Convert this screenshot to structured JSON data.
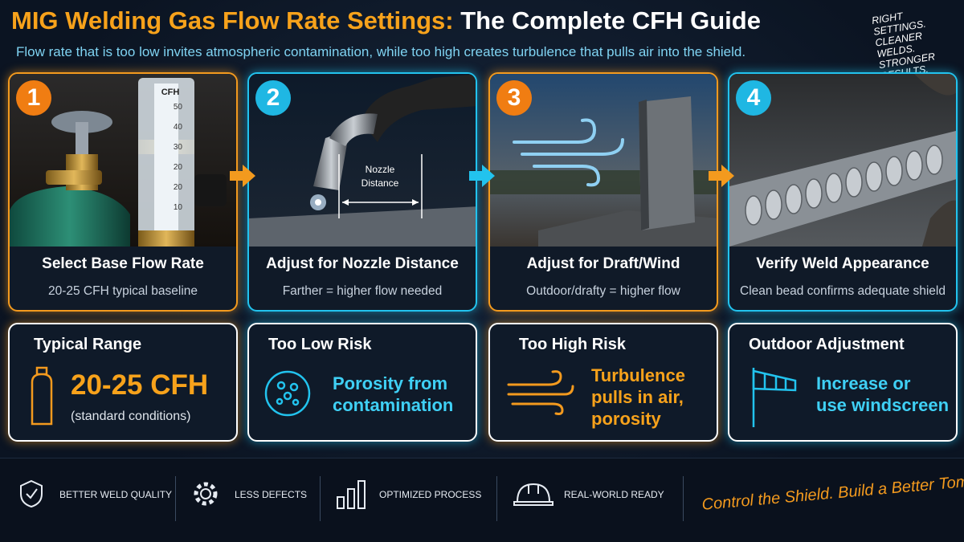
{
  "header": {
    "title_highlight": "MIG Welding Gas Flow Rate Settings:",
    "title_rest": "The Complete CFH Guide",
    "subtitle": "Flow rate that is too low invites atmospheric contamination, while too high creates turbulence that pulls air into the shield.",
    "tag": [
      "RIGHT",
      "SETTINGS.",
      "CLEANER WELDS.",
      "STRONGER",
      "RESULTS."
    ]
  },
  "steps": [
    {
      "number": "1",
      "title": "Select Base Flow Rate",
      "description": "20-25 CFH typical baseline",
      "image_labels": [
        "CFH",
        "50",
        "40",
        "30",
        "20",
        "20",
        "10"
      ]
    },
    {
      "number": "2",
      "title": "Adjust for Nozzle Distance",
      "description": "Farther = higher flow needed",
      "image_labels": [
        "Nozzle",
        "Distance"
      ]
    },
    {
      "number": "3",
      "title": "Adjust for Draft/Wind",
      "description": "Outdoor/drafty = higher flow",
      "image_labels": []
    },
    {
      "number": "4",
      "title": "Verify Weld Appearance",
      "description": "Clean bead confirms adequate shield",
      "image_labels": []
    }
  ],
  "cards": [
    {
      "title": "Typical Range",
      "value": "20-25 CFH",
      "note": "(standard conditions)"
    },
    {
      "title": "Too Low Risk",
      "lines": [
        "Porosity from",
        "contamination"
      ]
    },
    {
      "title": "Too High Risk",
      "lines": [
        "Turbulence",
        "pulls in air,",
        "porosity"
      ]
    },
    {
      "title": "Outdoor Adjustment",
      "lines": [
        "Increase or",
        "use windscreen"
      ]
    }
  ],
  "footer": {
    "items": [
      "BETTER WELD QUALITY",
      "LESS DEFECTS",
      "OPTIMIZED PROCESS",
      "REAL-WORLD READY"
    ],
    "tagline": "Control the Shield. Build a Better Tomorrow."
  }
}
